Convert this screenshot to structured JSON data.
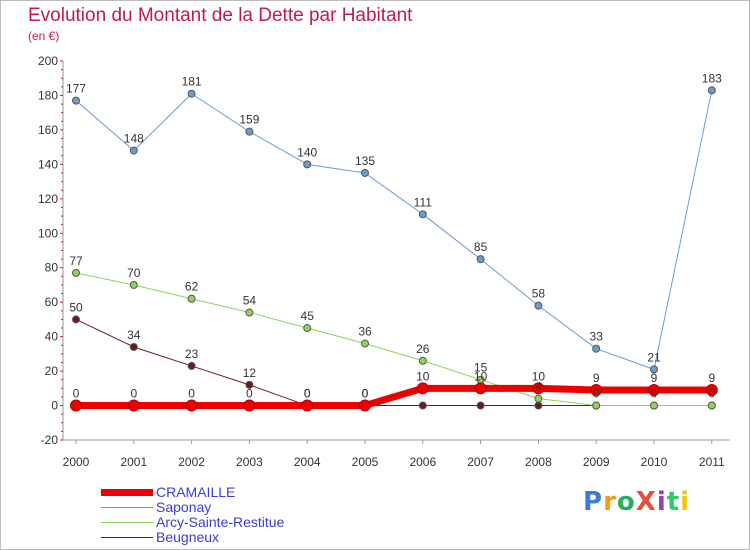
{
  "title": "Evolution du Montant de la Dette par Habitant",
  "unit": "(en €)",
  "logo": "ProXiti",
  "chart_data": {
    "type": "line",
    "categories": [
      "2000",
      "2001",
      "2002",
      "2003",
      "2004",
      "2005",
      "2006",
      "2007",
      "2008",
      "2009",
      "2010",
      "2011"
    ],
    "ylim": [
      -20,
      200
    ],
    "yticks": [
      -20,
      0,
      20,
      40,
      60,
      80,
      100,
      120,
      140,
      160,
      180,
      200
    ],
    "grid": false,
    "legend_position": "bottom-left",
    "series": [
      {
        "name": "Beugneux",
        "color": "#6b1a1a",
        "width": 1,
        "values": [
          50,
          34,
          23,
          12,
          0,
          0,
          0,
          0,
          0,
          0,
          0,
          0
        ],
        "labels": [
          "50",
          "34",
          "23",
          "12",
          "0",
          "0",
          "",
          "",
          "",
          "",
          "",
          ""
        ]
      },
      {
        "name": "Arcy-Sainte-Restitue",
        "color": "#8ed45a",
        "width": 1,
        "values": [
          77,
          70,
          62,
          54,
          45,
          36,
          26,
          15,
          4,
          0,
          0,
          0
        ],
        "labels": [
          "77",
          "70",
          "62",
          "54",
          "45",
          "36",
          "26",
          "15",
          "4",
          "0",
          "0",
          "0"
        ]
      },
      {
        "name": "Saponay",
        "color": "#6b9ccc",
        "width": 1,
        "values": [
          177,
          148,
          181,
          159,
          140,
          135,
          111,
          85,
          58,
          33,
          21,
          183
        ],
        "labels": [
          "177",
          "148",
          "181",
          "159",
          "140",
          "135",
          "111",
          "85",
          "58",
          "33",
          "21",
          "183"
        ]
      },
      {
        "name": "CRAMAILLE",
        "color": "#ee0000",
        "width": 7,
        "values": [
          0,
          0,
          0,
          0,
          0,
          0,
          10,
          10,
          10,
          9,
          9,
          9
        ],
        "labels": [
          "0",
          "0",
          "0",
          "0",
          "0",
          "0",
          "10",
          "10",
          "10",
          "9",
          "9",
          "9"
        ]
      }
    ]
  }
}
